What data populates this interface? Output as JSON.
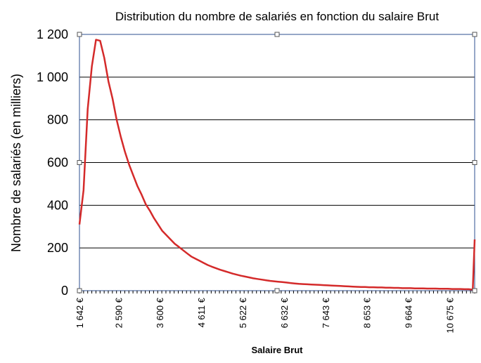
{
  "chart_data": {
    "type": "line",
    "title": "Distribution du nombre de salariés en fonction du salaire Brut",
    "xlabel": "Salaire Brut",
    "ylabel": "Nombre de salariés (en milliers)",
    "ylim": [
      0,
      1200
    ],
    "yticks": [
      0,
      200,
      400,
      600,
      800,
      1000,
      1200
    ],
    "ytick_labels": [
      "0",
      "200",
      "400",
      "600",
      "800",
      "1 000",
      "1 200"
    ],
    "xlim": [
      1642,
      11282
    ],
    "xticks": [
      1642,
      2590,
      3600,
      4611,
      5622,
      6632,
      7643,
      8653,
      9664,
      10675
    ],
    "xtick_labels": [
      "1 642 €",
      "2 590 €",
      "3 600 €",
      "4 611 €",
      "5 622 €",
      "6 632 €",
      "7 643 €",
      "8 653 €",
      "9 664 €",
      "10 675 €"
    ],
    "grid": "horizontal",
    "line_color": "#d42a2a",
    "axis_color": "#2e4f8f",
    "series": [
      {
        "x": [
          1642,
          1741,
          1842,
          1944,
          2045,
          2146,
          2247,
          2348,
          2449,
          2550,
          2651,
          2752,
          2853,
          2954,
          3055,
          3156,
          3257,
          3358,
          3459,
          3560,
          3661,
          3762,
          3863,
          3964,
          4065,
          4166,
          4267,
          4368,
          4469,
          4570,
          4671,
          4772,
          4873,
          4974,
          5075,
          5176,
          5277,
          5378,
          5479,
          5580,
          5681,
          5782,
          5883,
          5984,
          6085,
          6186,
          6287,
          6388,
          6489,
          6590,
          6691,
          6792,
          6893,
          6994,
          7095,
          7196,
          7297,
          7398,
          7499,
          7600,
          7701,
          7802,
          7903,
          8004,
          8105,
          8206,
          8307,
          8408,
          8509,
          8610,
          8711,
          8812,
          8913,
          9014,
          9115,
          9216,
          9317,
          9418,
          9519,
          9620,
          9721,
          9822,
          9923,
          10024,
          10125,
          10226,
          10327,
          10428,
          10529,
          10630,
          10731,
          10832,
          10933,
          11034,
          11135,
          11236,
          11282
        ],
        "values": [
          310,
          470,
          850,
          1050,
          1175,
          1170,
          1090,
          980,
          900,
          800,
          720,
          650,
          590,
          540,
          490,
          450,
          405,
          375,
          340,
          310,
          280,
          260,
          240,
          220,
          205,
          190,
          175,
          160,
          150,
          140,
          130,
          120,
          112,
          105,
          98,
          92,
          86,
          80,
          75,
          70,
          66,
          62,
          58,
          55,
          52,
          49,
          46,
          44,
          42,
          40,
          38,
          36,
          34,
          32,
          31,
          30,
          29,
          28,
          27,
          26,
          25,
          24,
          23,
          22,
          21,
          20,
          19,
          18,
          17,
          17,
          16,
          16,
          15,
          15,
          14,
          14,
          13,
          13,
          12,
          12,
          12,
          11,
          11,
          11,
          10,
          10,
          10,
          9,
          9,
          9,
          8,
          8,
          8,
          7,
          7,
          5,
          240
        ]
      }
    ]
  }
}
